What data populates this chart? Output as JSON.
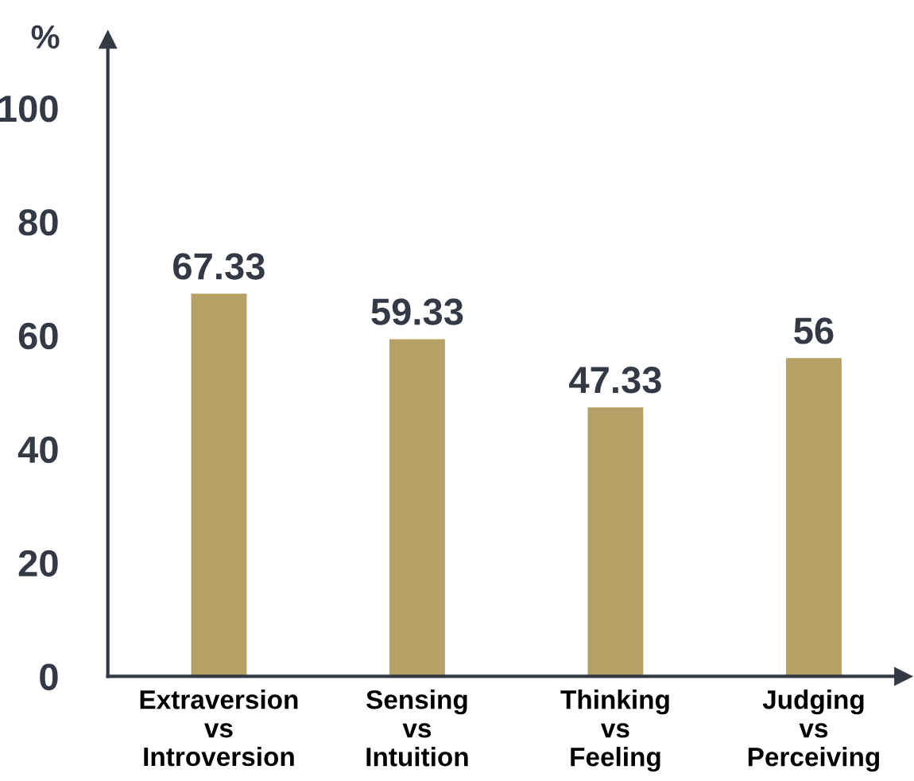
{
  "chart_data": {
    "type": "bar",
    "categories": [
      "Extraversion\nvs\nIntroversion",
      "Sensing\nvs\nIntuition",
      "Thinking\nvs\nFeeling",
      "Judging\nvs\nPerceiving"
    ],
    "values": [
      67.33,
      59.33,
      47.33,
      56
    ],
    "color": "#b5a165",
    "ylabel": "%",
    "ylim": [
      0,
      112
    ],
    "yticks": [
      0,
      20,
      40,
      60,
      80,
      100
    ],
    "data_labels": true,
    "grid": false,
    "legend": false
  }
}
